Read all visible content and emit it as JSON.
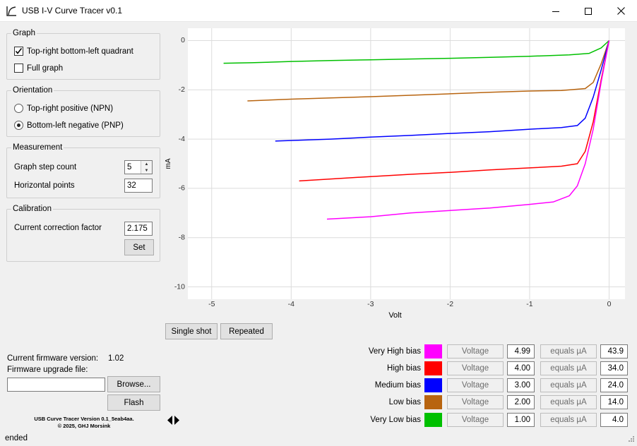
{
  "window": {
    "title": "USB I-V Curve Tracer v0.1",
    "icon": "curve-icon",
    "controls": [
      "minimize-icon",
      "maximize-icon",
      "close-icon"
    ]
  },
  "graph_group": {
    "title": "Graph",
    "options": [
      {
        "label": "Top-right bottom-left quadrant",
        "checked": true
      },
      {
        "label": "Full graph",
        "checked": false
      }
    ]
  },
  "orientation_group": {
    "title": "Orientation",
    "options": [
      {
        "label": "Top-right positive (NPN)",
        "selected": false
      },
      {
        "label": "Bottom-left negative (PNP)",
        "selected": true
      }
    ]
  },
  "measurement_group": {
    "title": "Measurement",
    "step_count_label": "Graph step count",
    "step_count_value": "5",
    "horizontal_points_label": "Horizontal points",
    "horizontal_points_value": "32"
  },
  "calibration_group": {
    "title": "Calibration",
    "factor_label": "Current correction factor",
    "factor_value": "2.175",
    "set_label": "Set"
  },
  "firmware": {
    "version_label": "Current firmware version:",
    "version_value": "1.02",
    "upgrade_label": "Firmware upgrade file:",
    "upgrade_value": "",
    "browse_label": "Browse...",
    "flash_label": "Flash",
    "footer_line1": "USB Curve Tracer  Version 0.1_5eab4aa.",
    "footer_line2": "© 2025, GHJ Morsink"
  },
  "actions": {
    "single_shot_label": "Single shot",
    "repeated_label": "Repeated"
  },
  "bias": [
    {
      "label": "Very High bias",
      "color": "#ff00ff",
      "voltage_label": "Voltage",
      "voltage": "4.99",
      "equals_label": "equals µA",
      "current": "43.9"
    },
    {
      "label": "High bias",
      "color": "#ff0000",
      "voltage_label": "Voltage",
      "voltage": "4.00",
      "equals_label": "equals µA",
      "current": "34.0"
    },
    {
      "label": "Medium bias",
      "color": "#0000ff",
      "voltage_label": "Voltage",
      "voltage": "3.00",
      "equals_label": "equals µA",
      "current": "24.0"
    },
    {
      "label": "Low bias",
      "color": "#b8640f",
      "voltage_label": "Voltage",
      "voltage": "2.00",
      "equals_label": "equals µA",
      "current": "14.0"
    },
    {
      "label": "Very Low bias",
      "color": "#00c000",
      "voltage_label": "Voltage",
      "voltage": "1.00",
      "equals_label": "equals µA",
      "current": "4.0"
    }
  ],
  "status": {
    "text": "ended",
    "nav_icon": "left-right-arrows-icon"
  },
  "chart_data": {
    "type": "line",
    "xlabel": "Volt",
    "ylabel": "mA",
    "xlim": [
      -5.3,
      0.2
    ],
    "ylim": [
      -10.5,
      0.5
    ],
    "xticks": [
      -5,
      -4,
      -3,
      -2,
      -1,
      0
    ],
    "yticks": [
      0,
      -2,
      -4,
      -6,
      -8,
      -10
    ],
    "grid": true,
    "legend": "none",
    "series": [
      {
        "color": "#00c000",
        "x": [
          -4.85,
          -4.5,
          -4.0,
          -3.5,
          -3.0,
          -2.5,
          -2.0,
          -1.5,
          -1.0,
          -0.5,
          -0.25,
          -0.1,
          0.0
        ],
        "y": [
          -0.92,
          -0.9,
          -0.85,
          -0.81,
          -0.78,
          -0.75,
          -0.72,
          -0.68,
          -0.64,
          -0.58,
          -0.52,
          -0.3,
          0.0
        ]
      },
      {
        "color": "#b8640f",
        "x": [
          -4.55,
          -4.0,
          -3.5,
          -3.0,
          -2.5,
          -2.0,
          -1.5,
          -1.0,
          -0.6,
          -0.3,
          -0.2,
          -0.1,
          0.0
        ],
        "y": [
          -2.45,
          -2.38,
          -2.33,
          -2.28,
          -2.22,
          -2.16,
          -2.1,
          -2.05,
          -2.03,
          -1.95,
          -1.7,
          -0.95,
          0.0
        ]
      },
      {
        "color": "#0000ff",
        "x": [
          -4.2,
          -3.5,
          -3.0,
          -2.5,
          -2.0,
          -1.5,
          -1.0,
          -0.6,
          -0.4,
          -0.3,
          -0.2,
          -0.1,
          0.0
        ],
        "y": [
          -4.08,
          -4.0,
          -3.92,
          -3.85,
          -3.77,
          -3.7,
          -3.6,
          -3.53,
          -3.45,
          -3.15,
          -2.3,
          -1.2,
          0.0
        ]
      },
      {
        "color": "#ff0000",
        "x": [
          -3.9,
          -3.5,
          -3.0,
          -2.5,
          -2.0,
          -1.5,
          -1.0,
          -0.6,
          -0.4,
          -0.3,
          -0.2,
          -0.1,
          0.0
        ],
        "y": [
          -5.7,
          -5.62,
          -5.52,
          -5.43,
          -5.35,
          -5.25,
          -5.17,
          -5.1,
          -5.0,
          -4.5,
          -3.3,
          -1.6,
          0.0
        ]
      },
      {
        "color": "#ff00ff",
        "x": [
          -3.55,
          -3.0,
          -2.5,
          -2.0,
          -1.5,
          -1.0,
          -0.7,
          -0.5,
          -0.4,
          -0.3,
          -0.2,
          -0.1,
          0.0
        ],
        "y": [
          -7.25,
          -7.15,
          -7.0,
          -6.9,
          -6.8,
          -6.65,
          -6.55,
          -6.3,
          -5.9,
          -5.0,
          -3.6,
          -1.7,
          0.0
        ]
      }
    ]
  }
}
